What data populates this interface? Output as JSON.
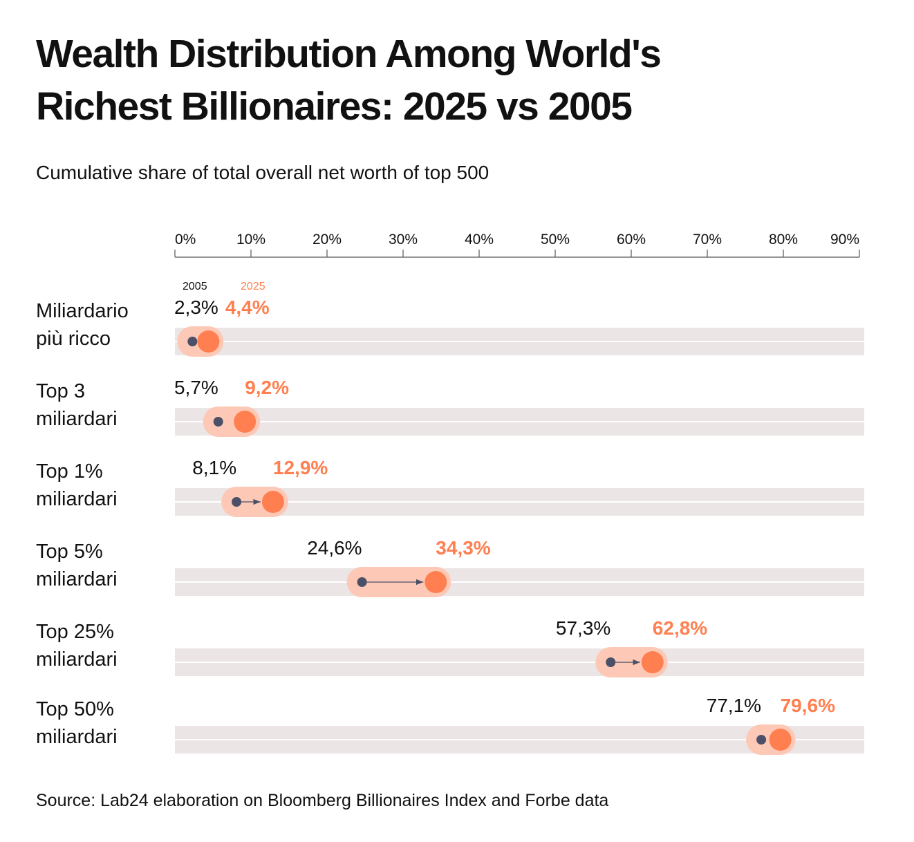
{
  "title_line1": "Wealth Distribution Among World's",
  "title_line2": "Richest Billionaires: 2025 vs 2005",
  "subtitle": "Cumulative share of total overall net worth of top 500",
  "source": "Source: Lab24 elaboration on Bloomberg Billionaires Index and Forbe data",
  "chart_data": {
    "type": "dumbbell",
    "xlim": [
      0,
      90
    ],
    "x_ticks": [
      "0%",
      "10%",
      "20%",
      "30%",
      "40%",
      "50%",
      "60%",
      "70%",
      "80%",
      "90%"
    ],
    "x_tick_values": [
      0,
      10,
      20,
      30,
      40,
      50,
      60,
      70,
      80,
      90
    ],
    "legend": {
      "a": "2005",
      "b": "2025"
    },
    "colors": {
      "2005": "#4b5068",
      "2025": "#ff7f50",
      "halo": "#fdc9b6",
      "track": "#ebe5e5",
      "axis": "#555555"
    },
    "rows": [
      {
        "label_line1": "Miliardario",
        "label_line2": "più ricco",
        "v2005": 2.3,
        "v2025": 4.4,
        "t2005": "2,3%",
        "t2025": "4,4%"
      },
      {
        "label_line1": "Top 3",
        "label_line2": "miliardari",
        "v2005": 5.7,
        "v2025": 9.2,
        "t2005": "5,7%",
        "t2025": "9,2%"
      },
      {
        "label_line1": "Top 1%",
        "label_line2": "miliardari",
        "v2005": 8.1,
        "v2025": 12.9,
        "t2005": "8,1%",
        "t2025": "12,9%"
      },
      {
        "label_line1": "Top 5%",
        "label_line2": "miliardari",
        "v2005": 24.6,
        "v2025": 34.3,
        "t2005": "24,6%",
        "t2025": "34,3%"
      },
      {
        "label_line1": "Top 25%",
        "label_line2": "miliardari",
        "v2005": 57.3,
        "v2025": 62.8,
        "t2005": "57,3%",
        "t2025": "62,8%"
      },
      {
        "label_line1": "Top 50%",
        "label_line2": "miliardari",
        "v2005": 77.1,
        "v2025": 79.6,
        "t2005": "77,1%",
        "t2025": "79,6%"
      }
    ]
  }
}
